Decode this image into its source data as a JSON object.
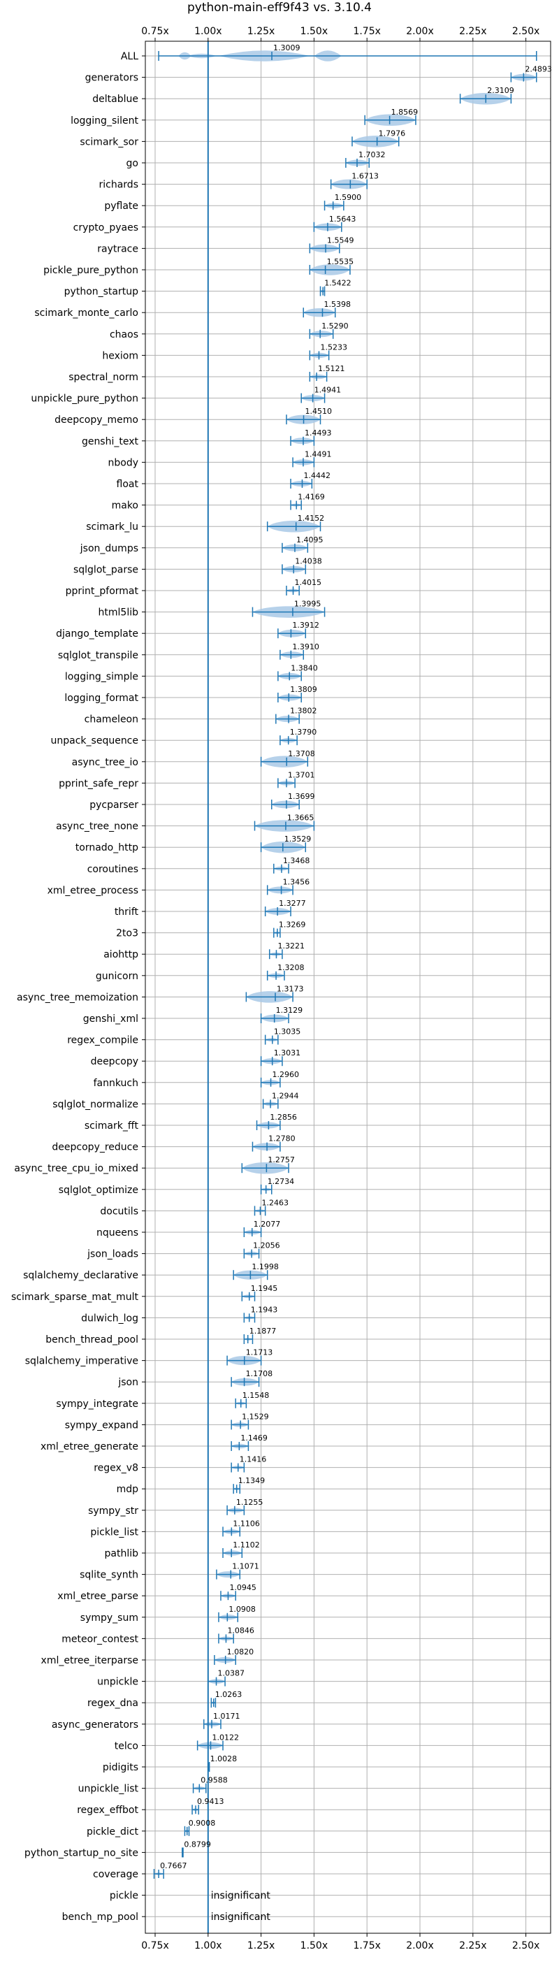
{
  "chart_data": {
    "type": "violin",
    "title": "python-main-eff9f43 vs. 3.10.4",
    "xlabel": "",
    "ylabel": "",
    "xlim": [
      0.7,
      2.62
    ],
    "xticks": [
      0.75,
      1.0,
      1.25,
      1.5,
      1.75,
      2.0,
      2.25,
      2.5
    ],
    "xtick_labels": [
      "0.75x",
      "1.00x",
      "1.25x",
      "1.50x",
      "1.75x",
      "2.00x",
      "2.25x",
      "2.50x"
    ],
    "reference_line": 1.0,
    "grid": true,
    "colors": {
      "violin": "#a9c9e6",
      "line": "#1f77b4",
      "grid": "#b0b0b0",
      "text": "#000000"
    },
    "insignificant_label": "insignificant",
    "benchmarks": [
      {
        "name": "ALL",
        "value": 1.3009,
        "min": 0.7667,
        "max": 2.55,
        "label": "1.3009",
        "kind": "all"
      },
      {
        "name": "generators",
        "value": 2.4893,
        "min": 2.43,
        "max": 2.55,
        "label": "2.4893"
      },
      {
        "name": "deltablue",
        "value": 2.3109,
        "min": 2.19,
        "max": 2.43,
        "label": "2.3109"
      },
      {
        "name": "logging_silent",
        "value": 1.8569,
        "min": 1.74,
        "max": 1.98,
        "label": "1.8569"
      },
      {
        "name": "scimark_sor",
        "value": 1.7976,
        "min": 1.68,
        "max": 1.9,
        "label": "1.7976"
      },
      {
        "name": "go",
        "value": 1.7032,
        "min": 1.65,
        "max": 1.76,
        "label": "1.7032"
      },
      {
        "name": "richards",
        "value": 1.6713,
        "min": 1.58,
        "max": 1.75,
        "label": "1.6713"
      },
      {
        "name": "pyflate",
        "value": 1.59,
        "min": 1.55,
        "max": 1.64,
        "label": "1.5900"
      },
      {
        "name": "crypto_pyaes",
        "value": 1.5643,
        "min": 1.5,
        "max": 1.63,
        "label": "1.5643"
      },
      {
        "name": "raytrace",
        "value": 1.5549,
        "min": 1.48,
        "max": 1.62,
        "label": "1.5549"
      },
      {
        "name": "pickle_pure_python",
        "value": 1.5535,
        "min": 1.48,
        "max": 1.67,
        "label": "1.5535"
      },
      {
        "name": "python_startup",
        "value": 1.5422,
        "min": 1.53,
        "max": 1.55,
        "label": "1.5422"
      },
      {
        "name": "scimark_monte_carlo",
        "value": 1.5398,
        "min": 1.45,
        "max": 1.6,
        "label": "1.5398"
      },
      {
        "name": "chaos",
        "value": 1.529,
        "min": 1.48,
        "max": 1.59,
        "label": "1.5290"
      },
      {
        "name": "hexiom",
        "value": 1.5233,
        "min": 1.48,
        "max": 1.57,
        "label": "1.5233"
      },
      {
        "name": "spectral_norm",
        "value": 1.5121,
        "min": 1.48,
        "max": 1.56,
        "label": "1.5121"
      },
      {
        "name": "unpickle_pure_python",
        "value": 1.4941,
        "min": 1.44,
        "max": 1.55,
        "label": "1.4941"
      },
      {
        "name": "deepcopy_memo",
        "value": 1.451,
        "min": 1.37,
        "max": 1.53,
        "label": "1.4510"
      },
      {
        "name": "genshi_text",
        "value": 1.4493,
        "min": 1.39,
        "max": 1.5,
        "label": "1.4493"
      },
      {
        "name": "nbody",
        "value": 1.4491,
        "min": 1.4,
        "max": 1.5,
        "label": "1.4491"
      },
      {
        "name": "float",
        "value": 1.4442,
        "min": 1.39,
        "max": 1.49,
        "label": "1.4442"
      },
      {
        "name": "mako",
        "value": 1.4169,
        "min": 1.39,
        "max": 1.44,
        "label": "1.4169"
      },
      {
        "name": "scimark_lu",
        "value": 1.4152,
        "min": 1.28,
        "max": 1.53,
        "label": "1.4152"
      },
      {
        "name": "json_dumps",
        "value": 1.4095,
        "min": 1.35,
        "max": 1.47,
        "label": "1.4095"
      },
      {
        "name": "sqlglot_parse",
        "value": 1.4038,
        "min": 1.35,
        "max": 1.46,
        "label": "1.4038"
      },
      {
        "name": "pprint_pformat",
        "value": 1.4015,
        "min": 1.37,
        "max": 1.43,
        "label": "1.4015"
      },
      {
        "name": "html5lib",
        "value": 1.3995,
        "min": 1.21,
        "max": 1.55,
        "label": "1.3995"
      },
      {
        "name": "django_template",
        "value": 1.3912,
        "min": 1.33,
        "max": 1.46,
        "label": "1.3912"
      },
      {
        "name": "sqlglot_transpile",
        "value": 1.391,
        "min": 1.34,
        "max": 1.45,
        "label": "1.3910"
      },
      {
        "name": "logging_simple",
        "value": 1.384,
        "min": 1.33,
        "max": 1.44,
        "label": "1.3840"
      },
      {
        "name": "logging_format",
        "value": 1.3809,
        "min": 1.33,
        "max": 1.44,
        "label": "1.3809"
      },
      {
        "name": "chameleon",
        "value": 1.3802,
        "min": 1.32,
        "max": 1.43,
        "label": "1.3802"
      },
      {
        "name": "unpack_sequence",
        "value": 1.379,
        "min": 1.34,
        "max": 1.42,
        "label": "1.3790"
      },
      {
        "name": "async_tree_io",
        "value": 1.3708,
        "min": 1.25,
        "max": 1.47,
        "label": "1.3708"
      },
      {
        "name": "pprint_safe_repr",
        "value": 1.3701,
        "min": 1.33,
        "max": 1.41,
        "label": "1.3701"
      },
      {
        "name": "pycparser",
        "value": 1.3699,
        "min": 1.3,
        "max": 1.43,
        "label": "1.3699"
      },
      {
        "name": "async_tree_none",
        "value": 1.3665,
        "min": 1.22,
        "max": 1.5,
        "label": "1.3665"
      },
      {
        "name": "tornado_http",
        "value": 1.3529,
        "min": 1.25,
        "max": 1.46,
        "label": "1.3529"
      },
      {
        "name": "coroutines",
        "value": 1.3468,
        "min": 1.31,
        "max": 1.38,
        "label": "1.3468"
      },
      {
        "name": "xml_etree_process",
        "value": 1.3456,
        "min": 1.28,
        "max": 1.4,
        "label": "1.3456"
      },
      {
        "name": "thrift",
        "value": 1.3277,
        "min": 1.27,
        "max": 1.39,
        "label": "1.3277"
      },
      {
        "name": "2to3",
        "value": 1.3269,
        "min": 1.31,
        "max": 1.34,
        "label": "1.3269"
      },
      {
        "name": "aiohttp",
        "value": 1.3221,
        "min": 1.29,
        "max": 1.35,
        "label": "1.3221"
      },
      {
        "name": "gunicorn",
        "value": 1.3208,
        "min": 1.28,
        "max": 1.36,
        "label": "1.3208"
      },
      {
        "name": "async_tree_memoization",
        "value": 1.3173,
        "min": 1.18,
        "max": 1.4,
        "label": "1.3173"
      },
      {
        "name": "genshi_xml",
        "value": 1.3129,
        "min": 1.25,
        "max": 1.38,
        "label": "1.3129"
      },
      {
        "name": "regex_compile",
        "value": 1.3035,
        "min": 1.27,
        "max": 1.33,
        "label": "1.3035"
      },
      {
        "name": "deepcopy",
        "value": 1.3031,
        "min": 1.25,
        "max": 1.35,
        "label": "1.3031"
      },
      {
        "name": "fannkuch",
        "value": 1.296,
        "min": 1.25,
        "max": 1.34,
        "label": "1.2960"
      },
      {
        "name": "sqlglot_normalize",
        "value": 1.2944,
        "min": 1.26,
        "max": 1.33,
        "label": "1.2944"
      },
      {
        "name": "scimark_fft",
        "value": 1.2856,
        "min": 1.23,
        "max": 1.34,
        "label": "1.2856"
      },
      {
        "name": "deepcopy_reduce",
        "value": 1.278,
        "min": 1.21,
        "max": 1.34,
        "label": "1.2780"
      },
      {
        "name": "async_tree_cpu_io_mixed",
        "value": 1.2757,
        "min": 1.16,
        "max": 1.38,
        "label": "1.2757"
      },
      {
        "name": "sqlglot_optimize",
        "value": 1.2734,
        "min": 1.25,
        "max": 1.3,
        "label": "1.2734"
      },
      {
        "name": "docutils",
        "value": 1.2463,
        "min": 1.22,
        "max": 1.27,
        "label": "1.2463"
      },
      {
        "name": "nqueens",
        "value": 1.2077,
        "min": 1.17,
        "max": 1.25,
        "label": "1.2077"
      },
      {
        "name": "json_loads",
        "value": 1.2056,
        "min": 1.17,
        "max": 1.24,
        "label": "1.2056"
      },
      {
        "name": "sqlalchemy_declarative",
        "value": 1.1998,
        "min": 1.12,
        "max": 1.28,
        "label": "1.1998"
      },
      {
        "name": "scimark_sparse_mat_mult",
        "value": 1.1945,
        "min": 1.16,
        "max": 1.22,
        "label": "1.1945"
      },
      {
        "name": "dulwich_log",
        "value": 1.1943,
        "min": 1.17,
        "max": 1.22,
        "label": "1.1943"
      },
      {
        "name": "bench_thread_pool",
        "value": 1.1877,
        "min": 1.17,
        "max": 1.21,
        "label": "1.1877"
      },
      {
        "name": "sqlalchemy_imperative",
        "value": 1.1713,
        "min": 1.09,
        "max": 1.25,
        "label": "1.1713"
      },
      {
        "name": "json",
        "value": 1.1708,
        "min": 1.11,
        "max": 1.24,
        "label": "1.1708"
      },
      {
        "name": "sympy_integrate",
        "value": 1.1548,
        "min": 1.13,
        "max": 1.18,
        "label": "1.1548"
      },
      {
        "name": "sympy_expand",
        "value": 1.1529,
        "min": 1.11,
        "max": 1.19,
        "label": "1.1529"
      },
      {
        "name": "xml_etree_generate",
        "value": 1.1469,
        "min": 1.11,
        "max": 1.19,
        "label": "1.1469"
      },
      {
        "name": "regex_v8",
        "value": 1.1416,
        "min": 1.11,
        "max": 1.17,
        "label": "1.1416"
      },
      {
        "name": "mdp",
        "value": 1.1349,
        "min": 1.12,
        "max": 1.15,
        "label": "1.1349"
      },
      {
        "name": "sympy_str",
        "value": 1.1255,
        "min": 1.09,
        "max": 1.17,
        "label": "1.1255"
      },
      {
        "name": "pickle_list",
        "value": 1.1106,
        "min": 1.07,
        "max": 1.15,
        "label": "1.1106"
      },
      {
        "name": "pathlib",
        "value": 1.1102,
        "min": 1.07,
        "max": 1.16,
        "label": "1.1102"
      },
      {
        "name": "sqlite_synth",
        "value": 1.1071,
        "min": 1.04,
        "max": 1.15,
        "label": "1.1071"
      },
      {
        "name": "xml_etree_parse",
        "value": 1.0945,
        "min": 1.06,
        "max": 1.13,
        "label": "1.0945"
      },
      {
        "name": "sympy_sum",
        "value": 1.0908,
        "min": 1.05,
        "max": 1.14,
        "label": "1.0908"
      },
      {
        "name": "meteor_contest",
        "value": 1.0846,
        "min": 1.05,
        "max": 1.12,
        "label": "1.0846"
      },
      {
        "name": "xml_etree_iterparse",
        "value": 1.082,
        "min": 1.03,
        "max": 1.13,
        "label": "1.0820"
      },
      {
        "name": "unpickle",
        "value": 1.0387,
        "min": 1.0,
        "max": 1.08,
        "label": "1.0387"
      },
      {
        "name": "regex_dna",
        "value": 1.0263,
        "min": 1.015,
        "max": 1.035,
        "label": "1.0263"
      },
      {
        "name": "async_generators",
        "value": 1.0171,
        "min": 0.98,
        "max": 1.06,
        "label": "1.0171"
      },
      {
        "name": "telco",
        "value": 1.0122,
        "min": 0.95,
        "max": 1.07,
        "label": "1.0122"
      },
      {
        "name": "pidigits",
        "value": 1.0028,
        "min": 1.0,
        "max": 1.006,
        "label": "1.0028"
      },
      {
        "name": "unpickle_list",
        "value": 0.9588,
        "min": 0.93,
        "max": 0.99,
        "label": "0.9588"
      },
      {
        "name": "regex_effbot",
        "value": 0.9413,
        "min": 0.925,
        "max": 0.955,
        "label": "0.9413"
      },
      {
        "name": "pickle_dict",
        "value": 0.9008,
        "min": 0.89,
        "max": 0.91,
        "label": "0.9008"
      },
      {
        "name": "python_startup_no_site",
        "value": 0.8799,
        "min": 0.878,
        "max": 0.882,
        "label": "0.8799"
      },
      {
        "name": "coverage",
        "value": 0.7667,
        "min": 0.745,
        "max": 0.79,
        "label": "0.7667"
      },
      {
        "name": "pickle",
        "value": null,
        "label": "insignificant",
        "kind": "insignificant"
      },
      {
        "name": "bench_mp_pool",
        "value": null,
        "label": "insignificant",
        "kind": "insignificant"
      }
    ]
  }
}
